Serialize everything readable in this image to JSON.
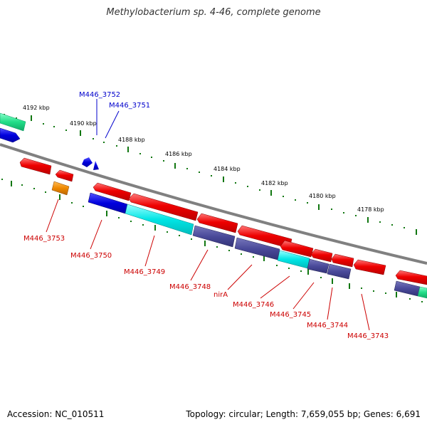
{
  "title": "Methylobacterium sp. 4-46, complete genome",
  "accession": "Accession: NC_010511",
  "topology": "Topology: circular; Length: 7,659,055 bp; Genes: 6,691",
  "kbp_labels": [
    "4192 kbp",
    "4190 kbp",
    "4188 kbp",
    "4186 kbp",
    "4184 kbp",
    "4182 kbp",
    "4180 kbp",
    "4178 kbp"
  ],
  "gene_labels": {
    "forward": [
      "M446_3752",
      "M446_3751"
    ],
    "reverse": [
      "M446_3753",
      "M446_3750",
      "M446_3749",
      "M446_3748",
      "nirA",
      "M446_3746",
      "M446_3745",
      "M446_3744",
      "M446_3743"
    ]
  },
  "colors": {
    "forward_label": "#0000cc",
    "reverse_label": "#cc0000",
    "cds_red": "#ee0000",
    "cds_blue": "#0000dd",
    "cds_cyan": "#00e5e5",
    "cds_slate": "#4a4a9a",
    "cds_green": "#22dd88",
    "cds_orange": "#ee8800",
    "backbone": "#808080",
    "ticks": "#117711"
  }
}
